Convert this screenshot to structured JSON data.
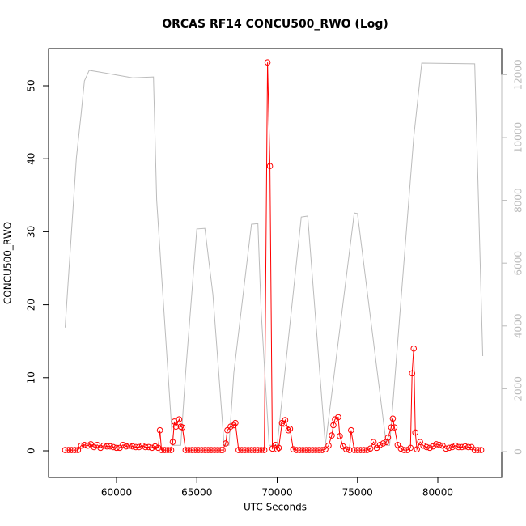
{
  "chart_data": {
    "type": "line",
    "title": "ORCAS RF14 CONCU500_RWO (Log)",
    "xlabel": "UTC Seconds",
    "ylabel": "CONCU500_RWO",
    "xlim": [
      55768,
      83980
    ],
    "xticks": [
      60000,
      65000,
      70000,
      75000,
      80000
    ],
    "ylim": [
      -3.66,
      55.1
    ],
    "yticks": [
      0,
      10,
      20,
      30,
      40,
      50
    ],
    "y2lim": [
      -825,
      12835
    ],
    "y2ticks": [
      0,
      2000,
      4000,
      6000,
      8000,
      10000,
      12000
    ],
    "series": [
      {
        "color": "#bbbbbb",
        "axis": "y2",
        "markers": false,
        "x": [
          56800,
          57500,
          57800,
          58000,
          58300,
          59000,
          60000,
          61000,
          62300,
          62500,
          63500,
          64000,
          64300,
          65000,
          65500,
          66000,
          66700,
          67000,
          67300,
          68400,
          68800,
          69000,
          69500,
          70000,
          71500,
          71900,
          73000,
          74800,
          75000,
          76800,
          77000,
          78500,
          79000,
          82300,
          82800
        ],
        "values": [
          3950,
          9350,
          10770,
          11800,
          12140,
          12080,
          11990,
          11900,
          11930,
          8000,
          200,
          200,
          2500,
          7090,
          7110,
          5000,
          200,
          200,
          2500,
          7240,
          7260,
          4500,
          200,
          200,
          7470,
          7500,
          200,
          7600,
          7580,
          200,
          200,
          10000,
          12370,
          12350,
          3040
        ]
      },
      {
        "color": "#ff0000",
        "markers": true,
        "x": [
          56800,
          57000,
          57200,
          57400,
          57600,
          57800,
          58000,
          58200,
          58400,
          58600,
          58800,
          59000,
          59200,
          59400,
          59600,
          59800,
          60000,
          60200,
          60400,
          60600,
          60800,
          61000,
          61200,
          61400,
          61600,
          61800,
          62000,
          62200,
          62400,
          62600,
          62700,
          62800,
          63000,
          63200,
          63400,
          63500,
          63600,
          63700,
          63900,
          64000,
          64100,
          64300,
          64500,
          64700,
          64900,
          65100,
          65300,
          65500,
          65700,
          65900,
          66100,
          66300,
          66500,
          66600,
          66800,
          66900,
          67100,
          67300,
          67400,
          67600,
          67800,
          68000,
          68200,
          68400,
          68600,
          68800,
          69000,
          69200,
          69400,
          69550,
          69700,
          69900,
          70000,
          70100,
          70300,
          70400,
          70500,
          70700,
          70800,
          71000,
          71200,
          71400,
          71600,
          71800,
          72000,
          72200,
          72400,
          72600,
          72800,
          73000,
          73200,
          73400,
          73500,
          73600,
          73800,
          73900,
          74100,
          74300,
          74500,
          74600,
          74800,
          75000,
          75200,
          75400,
          75600,
          75800,
          76000,
          76200,
          76400,
          76600,
          76800,
          76900,
          77100,
          77200,
          77300,
          77500,
          77700,
          77900,
          78100,
          78300,
          78400,
          78500,
          78600,
          78700,
          78900,
          79100,
          79300,
          79500,
          79700,
          79900,
          80100,
          80300,
          80500,
          80700,
          80900,
          81100,
          81300,
          81500,
          81700,
          81900,
          82100,
          82300,
          82500,
          82700
        ],
        "values": [
          0.1,
          0.1,
          0.1,
          0.1,
          0.1,
          0.7,
          0.8,
          0.7,
          0.9,
          0.5,
          0.8,
          0.4,
          0.7,
          0.6,
          0.6,
          0.5,
          0.4,
          0.4,
          0.8,
          0.6,
          0.7,
          0.6,
          0.5,
          0.5,
          0.7,
          0.5,
          0.5,
          0.4,
          0.6,
          0.4,
          2.8,
          0.1,
          0.1,
          0.1,
          0.1,
          1.2,
          4.0,
          3.3,
          4.3,
          3.3,
          3.2,
          0.1,
          0.1,
          0.1,
          0.1,
          0.1,
          0.1,
          0.1,
          0.1,
          0.1,
          0.1,
          0.1,
          0.1,
          0.1,
          1.0,
          2.8,
          3.3,
          3.5,
          3.8,
          0.1,
          0.1,
          0.1,
          0.1,
          0.1,
          0.1,
          0.1,
          0.1,
          0.1,
          53.2,
          39.0,
          0.3,
          0.8,
          0.2,
          0.4,
          3.8,
          3.7,
          4.2,
          2.8,
          3.0,
          0.2,
          0.1,
          0.1,
          0.1,
          0.1,
          0.1,
          0.1,
          0.1,
          0.1,
          0.1,
          0.2,
          0.7,
          2.1,
          3.5,
          4.3,
          4.6,
          2.0,
          0.6,
          0.2,
          0.1,
          2.8,
          0.1,
          0.1,
          0.1,
          0.1,
          0.1,
          0.3,
          1.2,
          0.4,
          0.8,
          1.0,
          1.2,
          1.8,
          3.2,
          4.4,
          3.2,
          0.8,
          0.3,
          0.1,
          0.1,
          0.4,
          10.6,
          14.0,
          2.5,
          0.2,
          1.2,
          0.7,
          0.5,
          0.4,
          0.6,
          0.9,
          0.8,
          0.7,
          0.3,
          0.4,
          0.5,
          0.7,
          0.5,
          0.5,
          0.6,
          0.5,
          0.5,
          0.1,
          0.1,
          0.1
        ]
      }
    ]
  }
}
